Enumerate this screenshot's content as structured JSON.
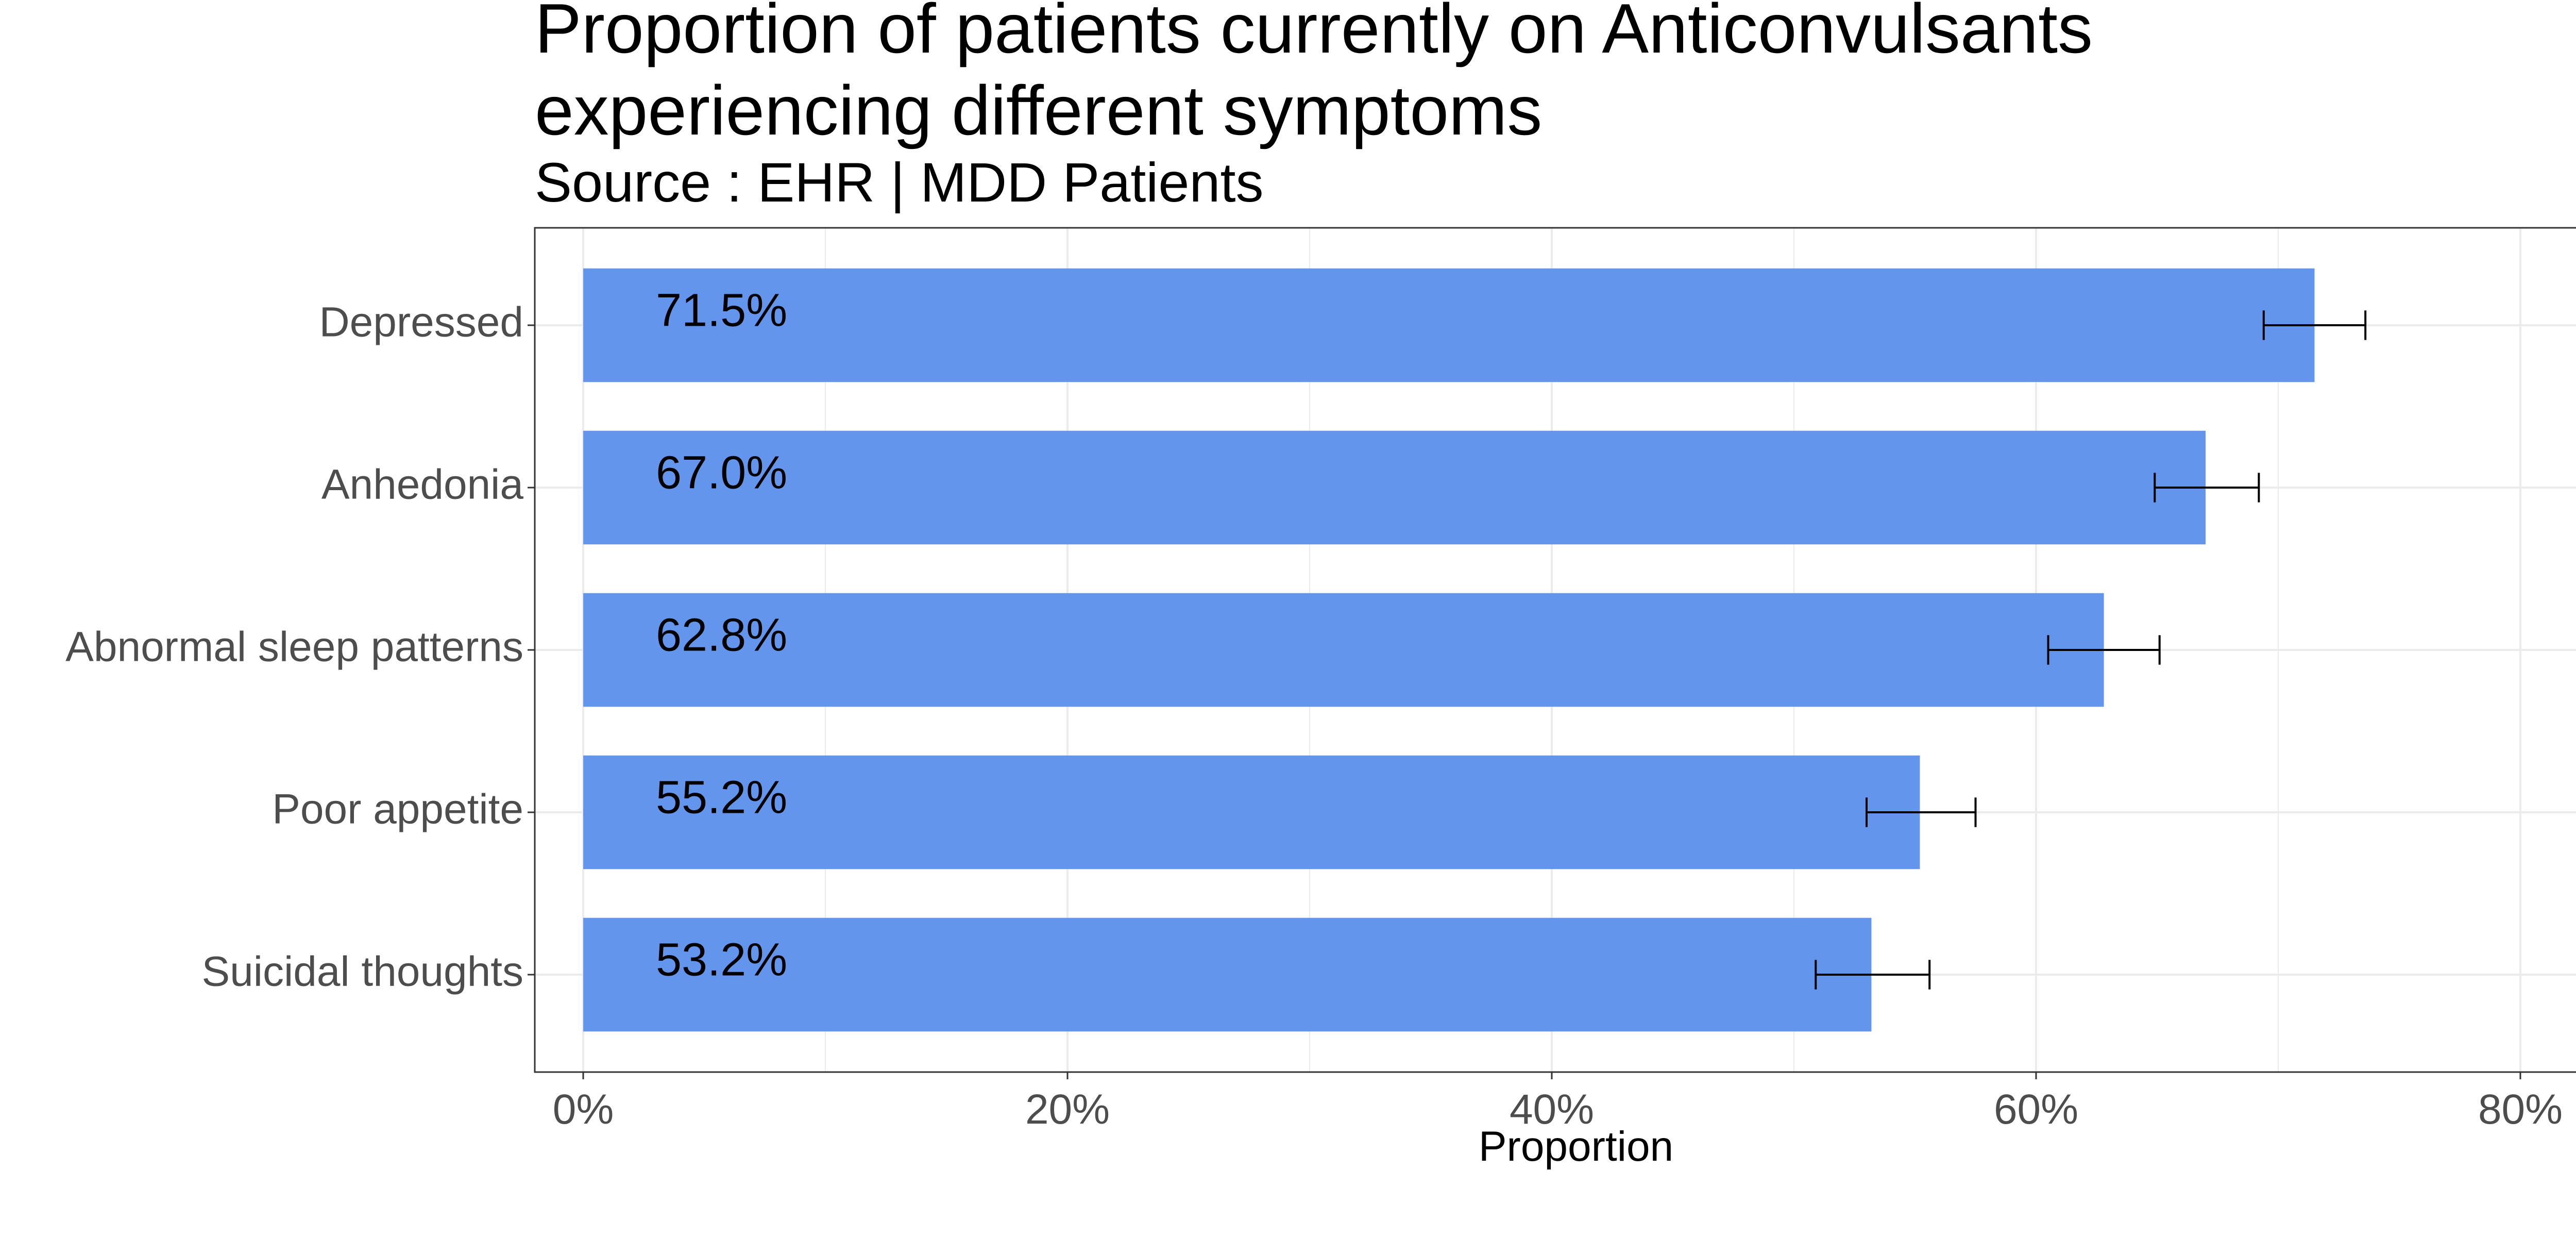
{
  "chart_data": {
    "type": "bar",
    "orientation": "horizontal",
    "title_line1": "Proportion of patients currently on  Anticonvulsants",
    "title_line2": "experiencing different symptoms",
    "subtitle": "Source : EHR | MDD Patients",
    "xlabel": "Proportion",
    "ylabel": "",
    "xlim": [
      -2,
      84
    ],
    "x_ticks": [
      0,
      20,
      40,
      60,
      80
    ],
    "x_tick_labels": [
      "0%",
      "20%",
      "40%",
      "60%",
      "80%"
    ],
    "grid": true,
    "legend": "none",
    "bar_color": "#6495ED",
    "categories": [
      "Depressed",
      "Anhedonia",
      "Abnormal sleep patterns",
      "Poor appetite",
      "Suicidal thoughts"
    ],
    "values": [
      71.5,
      67.0,
      62.8,
      55.2,
      53.2
    ],
    "value_labels": [
      "71.5%",
      "67.0%",
      "62.8%",
      "55.2%",
      "53.2%"
    ],
    "error_low": [
      69.4,
      64.9,
      60.5,
      53.0,
      50.9
    ],
    "error_high": [
      73.6,
      69.2,
      65.1,
      57.5,
      55.6
    ]
  }
}
